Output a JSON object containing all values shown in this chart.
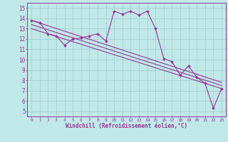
{
  "xlabel": "Windchill (Refroidissement éolien,°C)",
  "bg_color": "#c0e8e8",
  "line_color": "#993399",
  "grid_color": "#a0cccc",
  "x_data": [
    0,
    1,
    2,
    3,
    4,
    5,
    6,
    7,
    8,
    9,
    10,
    11,
    12,
    13,
    14,
    15,
    16,
    17,
    18,
    19,
    20,
    21,
    22,
    23
  ],
  "series1": [
    13.8,
    13.6,
    12.5,
    12.3,
    11.4,
    12.0,
    12.1,
    12.3,
    12.5,
    11.8,
    14.7,
    14.4,
    14.7,
    14.3,
    14.7,
    13.0,
    10.1,
    9.8,
    8.5,
    9.4,
    8.3,
    7.7,
    5.3,
    7.2
  ],
  "trend1_y0": 13.8,
  "trend1_y1": 7.8,
  "trend2_y0": 13.4,
  "trend2_y1": 7.5,
  "trend3_y0": 13.0,
  "trend3_y1": 7.2,
  "xlim": [
    -0.5,
    23.5
  ],
  "ylim": [
    4.5,
    15.5
  ],
  "yticks": [
    5,
    6,
    7,
    8,
    9,
    10,
    11,
    12,
    13,
    14,
    15
  ],
  "xticks": [
    0,
    1,
    2,
    3,
    4,
    5,
    6,
    7,
    8,
    9,
    10,
    11,
    12,
    13,
    14,
    15,
    16,
    17,
    18,
    19,
    20,
    21,
    22,
    23
  ]
}
